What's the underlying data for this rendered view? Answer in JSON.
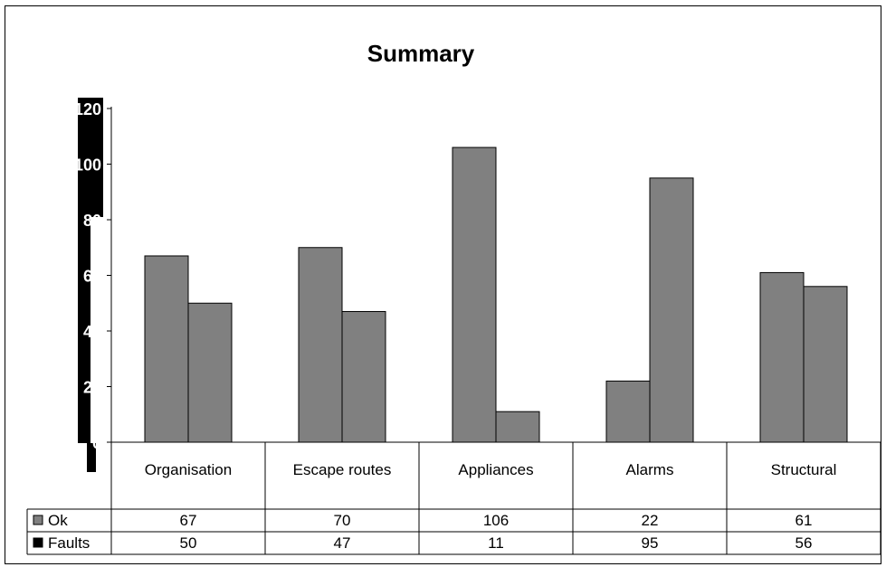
{
  "chart_data": {
    "type": "bar",
    "title": "Summary",
    "categories": [
      "Organisation",
      "Escape routes",
      "Appliances",
      "Alarms",
      "Structural"
    ],
    "series": [
      {
        "name": "Ok",
        "values": [
          67,
          70,
          106,
          22,
          61
        ],
        "color": "#808080"
      },
      {
        "name": "Faults",
        "values": [
          50,
          47,
          11,
          95,
          56
        ],
        "color": "#808080"
      }
    ],
    "legend_colors": [
      "#808080",
      "#000000"
    ],
    "ylim": [
      0,
      120
    ],
    "yticks": [
      "0",
      "20",
      "40",
      "60",
      "80",
      "100",
      "120"
    ],
    "data_table": true,
    "grid": false
  }
}
